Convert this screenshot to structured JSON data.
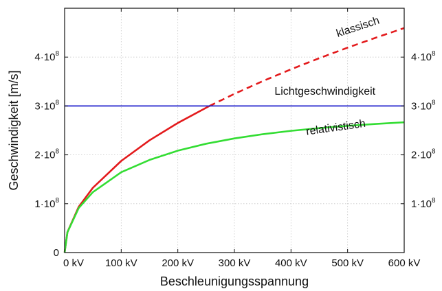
{
  "chart_data": {
    "type": "line",
    "title": "",
    "xlabel": "Beschleunigungsspannung",
    "ylabel": "Geschwindigkeit [m/s]",
    "xlim": [
      0,
      600
    ],
    "ylim": [
      0,
      500000000
    ],
    "grid": true,
    "x_ticks": [
      {
        "value": 0,
        "label": "0 kV"
      },
      {
        "value": 100,
        "label": "100 kV"
      },
      {
        "value": 200,
        "label": "200 kV"
      },
      {
        "value": 300,
        "label": "300 kV"
      },
      {
        "value": 400,
        "label": "400 kV"
      },
      {
        "value": 500,
        "label": "500 kV"
      },
      {
        "value": 600,
        "label": "600 kV"
      }
    ],
    "y_ticks_left": [
      {
        "value": 0,
        "base": "0",
        "exp": ""
      },
      {
        "value": 100000000,
        "base": "1·10",
        "exp": "8"
      },
      {
        "value": 200000000,
        "base": "2·10",
        "exp": "8"
      },
      {
        "value": 300000000,
        "base": "3·10",
        "exp": "8"
      },
      {
        "value": 400000000,
        "base": "4·10",
        "exp": "8"
      }
    ],
    "y_ticks_right": [
      {
        "value": 100000000,
        "base": "1·10",
        "exp": "8"
      },
      {
        "value": 200000000,
        "base": "2·10",
        "exp": "8"
      },
      {
        "value": 300000000,
        "base": "3·10",
        "exp": "8"
      },
      {
        "value": 400000000,
        "base": "4·10",
        "exp": "8"
      }
    ],
    "series": [
      {
        "name": "klassisch",
        "color": "#e31a1c",
        "style": "solid-then-dashed-above-c",
        "x": [
          0,
          5,
          25,
          50,
          100,
          150,
          200,
          256,
          300,
          350,
          400,
          450,
          500,
          550,
          600
        ],
        "y": [
          0,
          41900000,
          93800000,
          132600000,
          187500000,
          229700000,
          265200000,
          300000000,
          324800000,
          350800000,
          375000000,
          397800000,
          419300000,
          439800000,
          459400000
        ]
      },
      {
        "name": "relativistisch",
        "color": "#33dd33",
        "style": "solid",
        "x": [
          0,
          5,
          25,
          50,
          100,
          150,
          200,
          250,
          300,
          350,
          400,
          450,
          500,
          550,
          600
        ],
        "y": [
          0,
          41700000,
          91300000,
          123700000,
          164400000,
          189600000,
          208500000,
          222700000,
          233600000,
          242200000,
          249100000,
          254700000,
          259400000,
          263300000,
          266600000
        ]
      },
      {
        "name": "Lichtgeschwindigkeit",
        "color": "#1f1fcc",
        "style": "solid",
        "x": [
          0,
          600
        ],
        "y": [
          300000000,
          300000000
        ]
      }
    ],
    "annotations": [
      {
        "text": "klassisch",
        "x": 520,
        "y": 455000000,
        "rotate": -18
      },
      {
        "text": "Lichtgeschwindigkeit",
        "x": 460,
        "y": 323000000,
        "rotate": 0
      },
      {
        "text": "relativistisch",
        "x": 480,
        "y": 249000000,
        "rotate": -8
      }
    ]
  }
}
